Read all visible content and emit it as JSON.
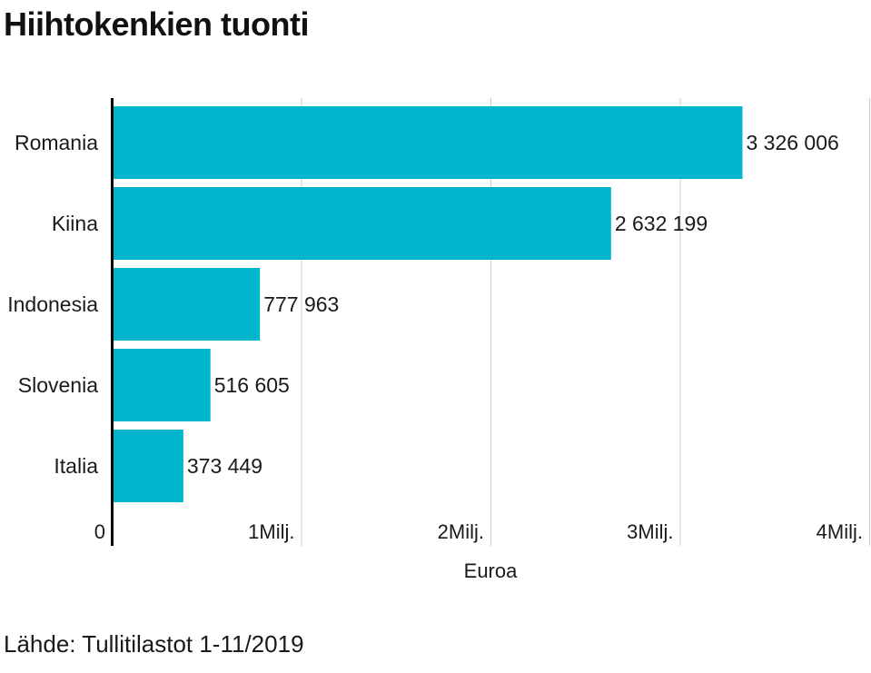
{
  "chart_data": {
    "type": "bar",
    "orientation": "horizontal",
    "title": "Hiihtokenkien tuonti",
    "categories": [
      "Romania",
      "Kiina",
      "Indonesia",
      "Slovenia",
      "Italia"
    ],
    "values": [
      3326006,
      2632199,
      777963,
      516605,
      373449
    ],
    "value_labels": [
      "3 326 006",
      "2 632 199",
      "777 963",
      "516 605",
      "373 449"
    ],
    "xlabel": "Euroa",
    "ylabel": "",
    "xlim": [
      0,
      4000000
    ],
    "xticks": [
      0,
      1000000,
      2000000,
      3000000,
      4000000
    ],
    "xtick_labels": [
      "0",
      "1Milj.",
      "2Milj.",
      "3Milj.",
      "4Milj."
    ],
    "grid": true,
    "bar_color": "#00b5cc",
    "grid_color": "#cccccc",
    "axis_color": "#000000",
    "source": "Lähde: Tullitilastot 1-11/2019"
  }
}
